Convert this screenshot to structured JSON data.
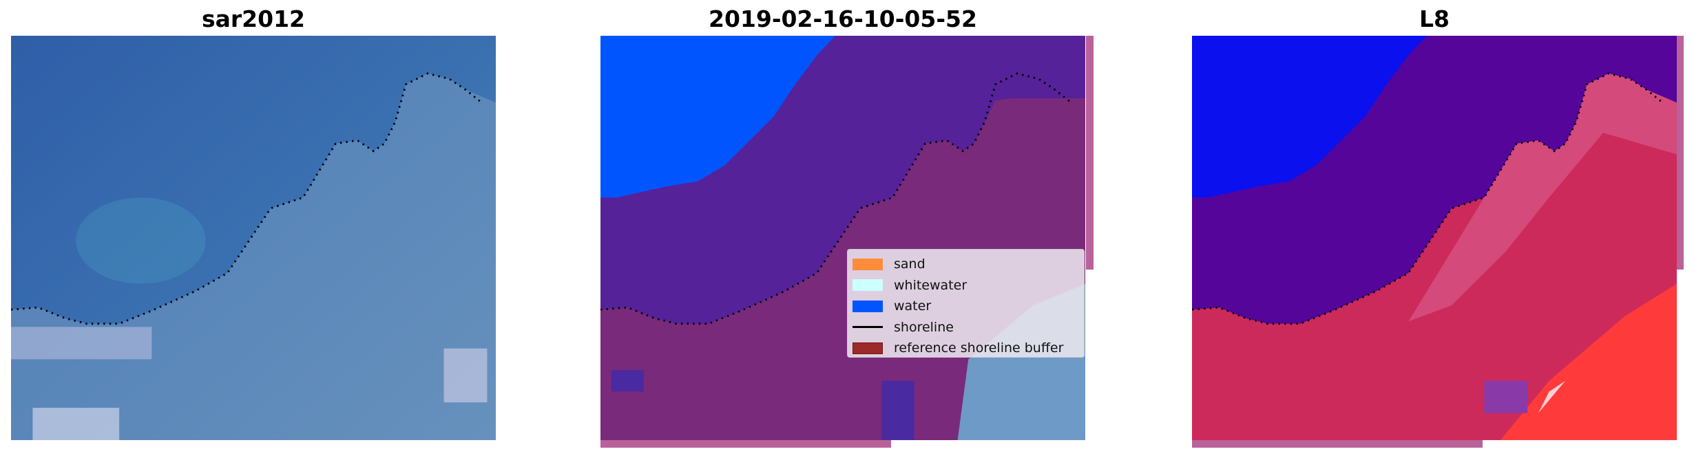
{
  "panels": [
    {
      "title": "sar2012"
    },
    {
      "title": "2019-02-16-10-05-52"
    },
    {
      "title": "L8"
    }
  ],
  "legend": {
    "items": [
      {
        "label": "sand",
        "color": "#ff8c3a",
        "kind": "patch"
      },
      {
        "label": "whitewater",
        "color": "#ccffff",
        "kind": "patch"
      },
      {
        "label": "water",
        "color": "#0055ff",
        "kind": "patch"
      },
      {
        "label": "shoreline",
        "color": "#000000",
        "kind": "line"
      },
      {
        "label": "reference shoreline buffer",
        "color": "#9b2a2a",
        "kind": "patch"
      }
    ]
  },
  "colors": {
    "buffer_overlay": "#b9629a",
    "water_class": "#0055ff",
    "purple": "#552299"
  }
}
